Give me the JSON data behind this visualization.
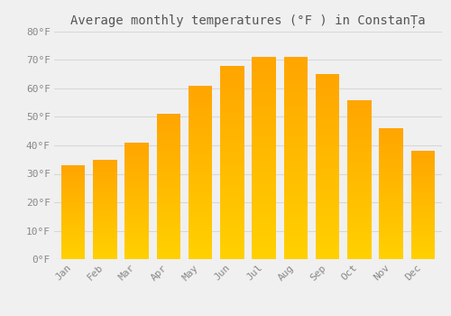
{
  "months": [
    "Jan",
    "Feb",
    "Mar",
    "Apr",
    "May",
    "Jun",
    "Jul",
    "Aug",
    "Sep",
    "Oct",
    "Nov",
    "Dec"
  ],
  "values": [
    33,
    35,
    41,
    51,
    61,
    68,
    71,
    71,
    65,
    56,
    46,
    38
  ],
  "title": "Average monthly temperatures (°F ) in ConstanȚa",
  "ylim": [
    0,
    80
  ],
  "yticks": [
    0,
    10,
    20,
    30,
    40,
    50,
    60,
    70,
    80
  ],
  "bar_color_top": "#FFA500",
  "bar_color_bottom": "#FFD000",
  "background_color": "#f0f0f0",
  "grid_color": "#d8d8d8",
  "title_fontsize": 10,
  "tick_fontsize": 8,
  "font_family": "monospace"
}
